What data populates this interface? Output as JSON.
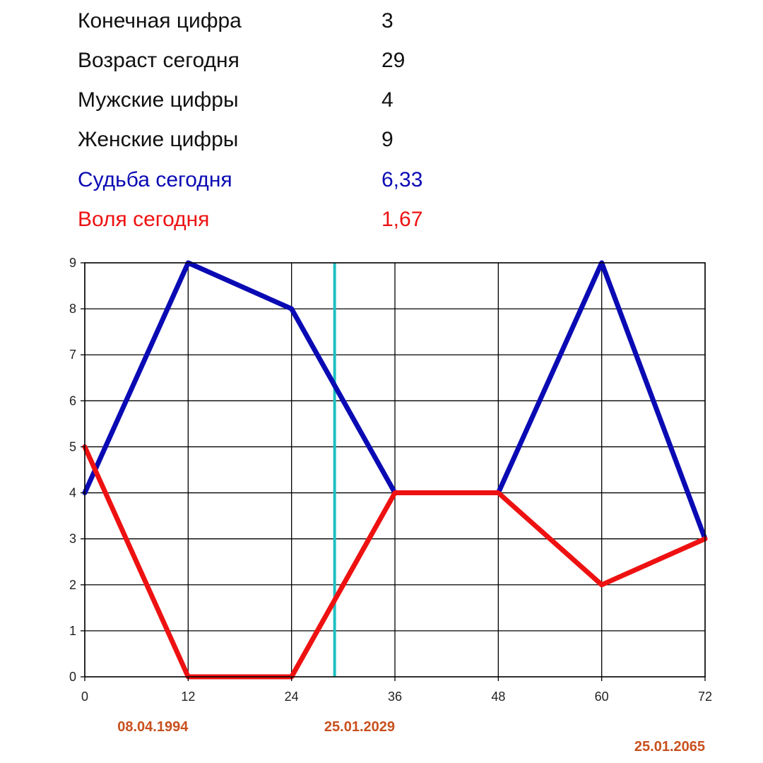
{
  "stats": [
    {
      "label": "Конечная цифра",
      "value": "3",
      "color": "#111111"
    },
    {
      "label": "Возраст сегодня",
      "value": "29",
      "color": "#111111"
    },
    {
      "label": "Мужские цифры",
      "value": "4",
      "color": "#111111"
    },
    {
      "label": "Женские цифры",
      "value": "9",
      "color": "#111111"
    },
    {
      "label": "Судьба сегодня",
      "value": "6,33",
      "color": "#0a0ab4"
    },
    {
      "label": "Воля сегодня",
      "value": "1,67",
      "color": "#ee1111"
    }
  ],
  "chart_data": {
    "type": "line",
    "x": [
      0,
      12,
      24,
      36,
      48,
      60,
      72
    ],
    "x_ticks": [
      "0",
      "12",
      "24",
      "36",
      "48",
      "60",
      "72"
    ],
    "y_ticks": [
      "0",
      "1",
      "2",
      "3",
      "4",
      "5",
      "6",
      "7",
      "8",
      "9"
    ],
    "xlim": [
      0,
      72
    ],
    "ylim": [
      0,
      9
    ],
    "grid": true,
    "series": [
      {
        "values": [
          4,
          9,
          8,
          4,
          4,
          9,
          3
        ],
        "color": "#0a0ab4"
      },
      {
        "values": [
          5,
          0,
          0,
          4,
          4,
          2,
          3
        ],
        "color": "#ee1111"
      }
    ],
    "marker_x": 29,
    "marker_color": "#1ec0c0",
    "date_labels": [
      {
        "text": "08.04.1994",
        "x": 12
      },
      {
        "text": "25.01.2029",
        "x": 36
      },
      {
        "text": "25.01.2065",
        "x": 72
      }
    ],
    "date_color": "#c8501e"
  }
}
